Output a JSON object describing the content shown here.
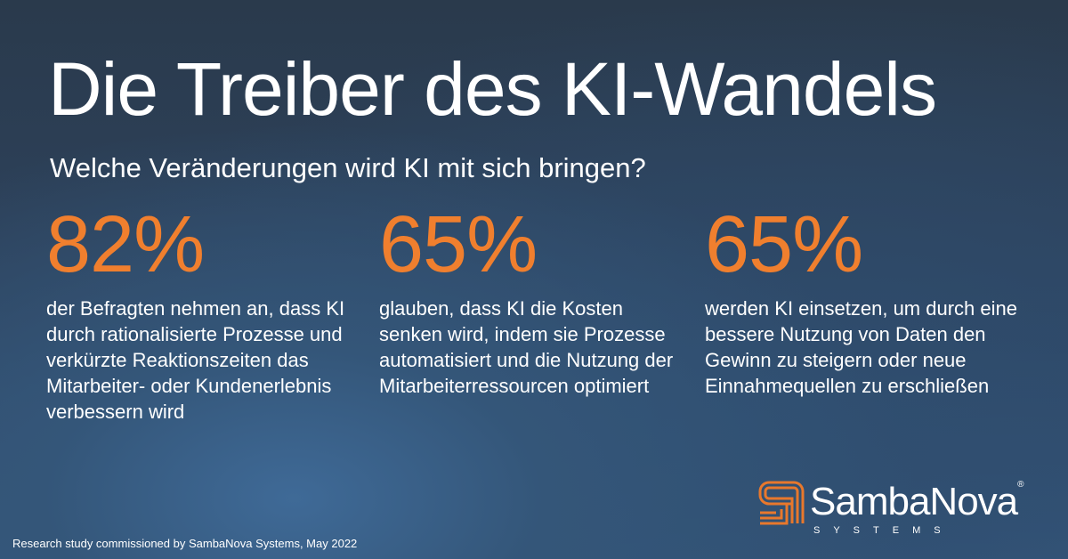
{
  "title": "Die Treiber des KI-Wandels",
  "subtitle": "Welche Veränderungen wird KI mit sich bringen?",
  "stats": [
    {
      "value": "82%",
      "description": "der Befragten nehmen an, dass KI durch rationalisierte Prozesse und verkürzte Reaktionszeiten das Mitarbeiter- oder Kundenerlebnis verbessern wird"
    },
    {
      "value": "65%",
      "description": "glauben, dass KI die Kosten senken wird, indem sie Prozesse automatisiert und die Nutzung der Mitarbeiterressourcen optimiert"
    },
    {
      "value": "65%",
      "description": "werden KI einsetzen, um durch eine bessere Nutzung von Daten den Gewinn zu steigern oder neue Einnahmequellen zu erschließen"
    }
  ],
  "footer": "Research study commissioned by SambaNova Systems, May 2022",
  "logo": {
    "name": "SambaNova",
    "registered": "®",
    "tagline": "SYSTEMS"
  },
  "colors": {
    "accent": "#f07f2e",
    "background": "#2c3c50"
  }
}
